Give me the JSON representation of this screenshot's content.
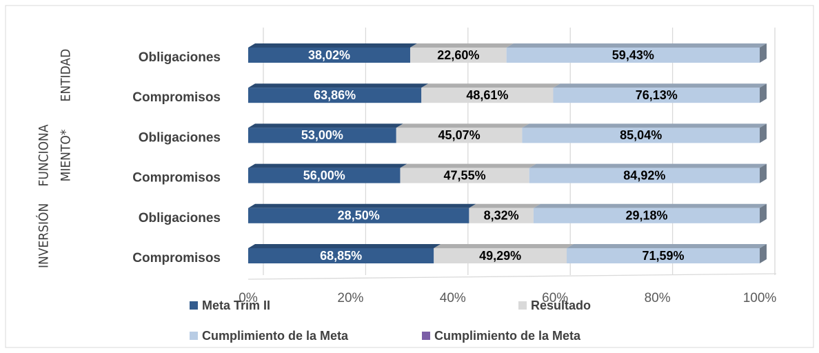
{
  "chart_data": {
    "type": "bar",
    "orientation": "horizontal",
    "stack": "percent",
    "categories": [
      "Obligaciones",
      "Compromisos",
      "Obligaciones",
      "Compromisos",
      "Obligaciones",
      "Compromisos"
    ],
    "groups": [
      {
        "lines": [
          "ENTIDAD"
        ],
        "rows": [
          0,
          1
        ]
      },
      {
        "lines": [
          "FUNCIONA",
          "MIENTO*"
        ],
        "rows": [
          2,
          3
        ]
      },
      {
        "lines": [
          "INVERSIÓN"
        ],
        "rows": [
          4,
          5
        ]
      }
    ],
    "series": [
      {
        "name": "Meta Trim II",
        "color": "#335c8e",
        "values": [
          38.02,
          63.86,
          53.0,
          56.0,
          28.5,
          68.85
        ],
        "value_labels": [
          "38,02%",
          "63,86%",
          "53,00%",
          "56,00%",
          "28,50%",
          "68,85%"
        ]
      },
      {
        "name": "Resultado",
        "color": "#d9d9d9",
        "values": [
          22.6,
          48.61,
          45.07,
          47.55,
          8.32,
          49.29
        ],
        "value_labels": [
          "22,60%",
          "48,61%",
          "45,07%",
          "47,55%",
          "8,32%",
          "49,29%"
        ]
      },
      {
        "name": "Cumplimiento de la Meta",
        "color": "#b8cce4",
        "values": [
          59.43,
          76.13,
          85.04,
          84.92,
          29.18,
          71.59
        ],
        "value_labels": [
          "59,43%",
          "76,13%",
          "85,04%",
          "84,92%",
          "29,18%",
          "71,59%"
        ]
      },
      {
        "name": "Cumplimiento de la Meta",
        "color": "#7b5ea7",
        "values": [
          null,
          null,
          null,
          null,
          null,
          null
        ]
      }
    ],
    "xlim": [
      0,
      100
    ],
    "xticks": [
      {
        "value": 0,
        "label": "0%"
      },
      {
        "value": 20,
        "label": "20%"
      },
      {
        "value": 40,
        "label": "40%"
      },
      {
        "value": 60,
        "label": "60%"
      },
      {
        "value": 80,
        "label": "80%"
      },
      {
        "value": 100,
        "label": "100%"
      }
    ],
    "grid": true
  }
}
